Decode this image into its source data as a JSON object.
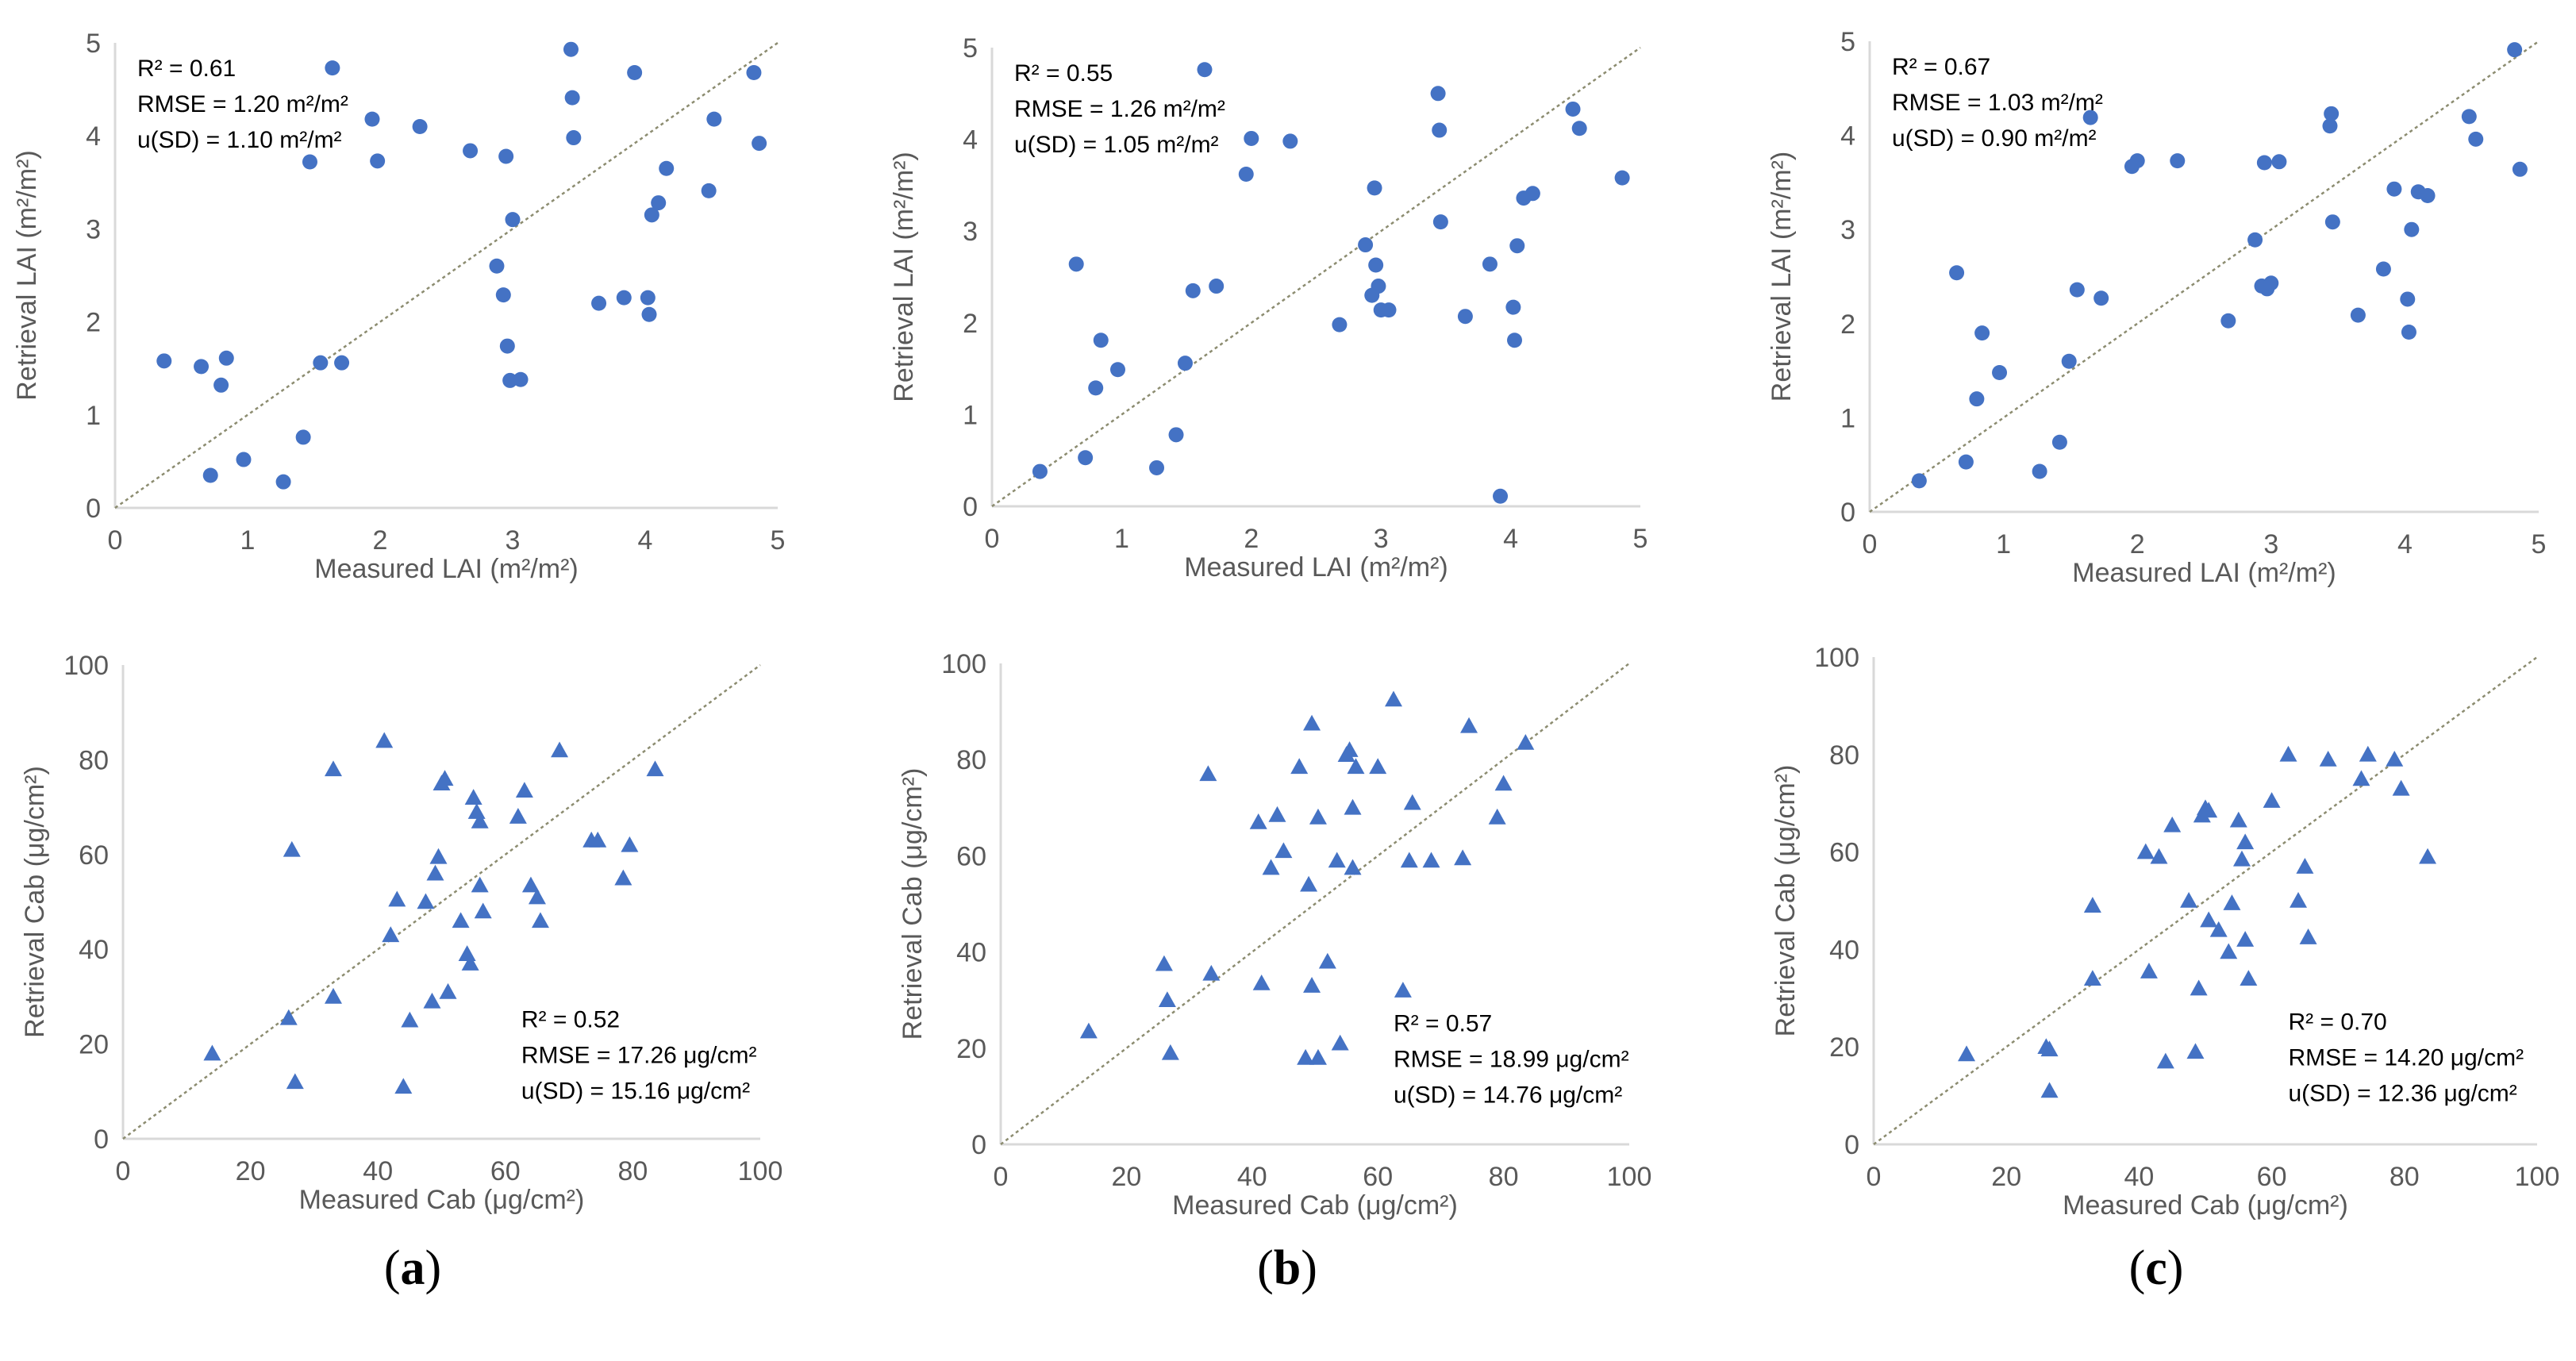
{
  "colors": {
    "marker": "#4472C4",
    "axis": "#D9D9D9",
    "diagonal": "#8C8C70",
    "text": "#595959"
  },
  "panel_labels": [
    "a",
    "b",
    "c"
  ],
  "chart_data": [
    {
      "type": "scatter",
      "marker": "circle",
      "panel": "a",
      "xlabel": "Measured LAI (m²/m²)",
      "ylabel": "Retrieval LAI (m²/m²)",
      "xlim": [
        0,
        5
      ],
      "ylim": [
        0,
        5
      ],
      "xticks": [
        0,
        1,
        2,
        3,
        4,
        5
      ],
      "yticks": [
        0,
        1,
        2,
        3,
        4,
        5
      ],
      "stats": [
        "R² = 0.61",
        "RMSE = 1.20 m²/m²",
        "u(SD) = 1.10 m²/m²"
      ],
      "stats_position": "top-left",
      "x": [
        0.37,
        0.65,
        0.72,
        0.8,
        0.84,
        0.97,
        1.27,
        1.42,
        1.47,
        1.55,
        1.64,
        1.71,
        1.94,
        1.98,
        2.3,
        2.68,
        2.88,
        2.93,
        2.95,
        2.96,
        2.98,
        3.0,
        3.06,
        3.44,
        3.45,
        3.46,
        3.65,
        3.84,
        3.92,
        4.02,
        4.03,
        4.05,
        4.1,
        4.16,
        4.48,
        4.52,
        4.82,
        4.86
      ],
      "y": [
        1.58,
        1.52,
        0.35,
        1.32,
        1.61,
        0.52,
        0.28,
        0.76,
        3.72,
        1.56,
        4.73,
        1.56,
        4.18,
        3.73,
        4.1,
        3.84,
        2.6,
        2.29,
        3.78,
        1.74,
        1.37,
        3.1,
        1.38,
        4.93,
        4.41,
        3.98,
        2.2,
        2.26,
        4.68,
        2.26,
        2.08,
        3.15,
        3.28,
        3.65,
        3.41,
        4.18,
        4.68,
        3.92
      ]
    },
    {
      "type": "scatter",
      "marker": "circle",
      "panel": "b",
      "xlabel": "Measured LAI (m²/m²)",
      "ylabel": "Retrieval LAI (m²/m²)",
      "xlim": [
        0,
        5
      ],
      "ylim": [
        0,
        5
      ],
      "xticks": [
        0,
        1,
        2,
        3,
        4,
        5
      ],
      "yticks": [
        0,
        1,
        2,
        3,
        4,
        5
      ],
      "stats": [
        "R² = 0.55",
        "RMSE = 1.26 m²/m²",
        "u(SD) = 1.05 m²/m²"
      ],
      "stats_position": "top-left",
      "x": [
        0.37,
        0.65,
        0.72,
        0.8,
        0.84,
        0.97,
        1.27,
        1.42,
        1.49,
        1.55,
        1.64,
        1.73,
        1.96,
        2.0,
        2.3,
        2.68,
        2.88,
        2.93,
        2.95,
        2.96,
        2.98,
        3.0,
        3.06,
        3.44,
        3.45,
        3.46,
        3.65,
        3.84,
        3.92,
        4.02,
        4.03,
        4.05,
        4.1,
        4.17,
        4.48,
        4.53,
        4.86
      ],
      "y": [
        0.38,
        2.64,
        0.53,
        1.29,
        1.81,
        1.49,
        0.42,
        0.78,
        1.56,
        2.35,
        4.76,
        2.4,
        3.62,
        4.01,
        3.98,
        1.98,
        2.85,
        2.3,
        3.47,
        2.63,
        2.4,
        2.14,
        2.14,
        4.5,
        4.1,
        3.1,
        2.07,
        2.64,
        0.11,
        2.17,
        1.81,
        2.84,
        3.36,
        3.41,
        4.33,
        4.12,
        3.58
      ]
    },
    {
      "type": "scatter",
      "marker": "circle",
      "panel": "c",
      "xlabel": "Measured LAI (m²/m²)",
      "ylabel": "Retrieval LAI (m²/m²)",
      "xlim": [
        0,
        5
      ],
      "ylim": [
        0,
        5
      ],
      "xticks": [
        0,
        1,
        2,
        3,
        4,
        5
      ],
      "yticks": [
        0,
        1,
        2,
        3,
        4,
        5
      ],
      "stats": [
        "R² = 0.67",
        "RMSE = 1.03 m²/m²",
        "u(SD) = 0.90 m²/m²"
      ],
      "stats_position": "top-left",
      "x": [
        0.37,
        0.65,
        0.72,
        0.8,
        0.84,
        0.97,
        1.27,
        1.42,
        1.49,
        1.55,
        1.65,
        1.73,
        1.96,
        2.0,
        2.3,
        2.68,
        2.88,
        2.93,
        2.95,
        2.97,
        3.0,
        3.06,
        3.44,
        3.45,
        3.46,
        3.65,
        3.84,
        3.92,
        4.02,
        4.03,
        4.05,
        4.1,
        4.17,
        4.48,
        4.53,
        4.82,
        4.86
      ],
      "y": [
        0.33,
        2.54,
        0.53,
        1.2,
        1.9,
        1.48,
        0.43,
        0.74,
        1.6,
        2.36,
        4.19,
        2.27,
        3.67,
        3.73,
        3.73,
        2.03,
        2.89,
        2.4,
        3.71,
        2.37,
        2.43,
        3.72,
        4.1,
        4.23,
        3.08,
        2.09,
        2.58,
        3.43,
        2.26,
        1.91,
        3.0,
        3.4,
        3.36,
        4.2,
        3.96,
        4.91,
        3.64
      ]
    },
    {
      "type": "scatter",
      "marker": "triangle",
      "panel": "a",
      "xlabel": "Measured Cab (μg/cm²)",
      "ylabel": "Retrieval Cab (μg/cm²)",
      "xlim": [
        0,
        100
      ],
      "ylim": [
        0,
        100
      ],
      "xticks": [
        0,
        20,
        40,
        60,
        80,
        100
      ],
      "yticks": [
        0,
        20,
        40,
        60,
        80,
        100
      ],
      "stats": [
        "R² = 0.52",
        "RMSE = 17.26 μg/cm²",
        "u(SD) = 15.16 μg/cm²"
      ],
      "stats_position": "bottom-right",
      "x": [
        14,
        26,
        26.5,
        27,
        33,
        33,
        41,
        42,
        43,
        44,
        45,
        47.5,
        48.5,
        49,
        49.5,
        50,
        50.5,
        51,
        53,
        54,
        54.5,
        55,
        55.5,
        56,
        56,
        56.5,
        62,
        63,
        64,
        65,
        65.5,
        68.5,
        73.5,
        74.5,
        78.5,
        79.5,
        83.5
      ],
      "y": [
        18,
        25.5,
        61,
        12,
        30,
        78,
        84,
        43,
        50.5,
        11,
        25,
        50,
        29,
        56,
        59.5,
        75,
        76,
        31,
        46,
        39,
        37,
        72,
        69,
        67,
        53.5,
        48,
        68,
        73.5,
        53.5,
        51,
        46,
        82,
        63,
        63,
        55,
        62,
        78
      ]
    },
    {
      "type": "scatter",
      "marker": "triangle",
      "panel": "b",
      "xlabel": "Measured Cab (μg/cm²)",
      "ylabel": "Retrieval Cab (μg/cm²)",
      "xlim": [
        0,
        100
      ],
      "ylim": [
        0,
        100
      ],
      "xticks": [
        0,
        20,
        40,
        60,
        80,
        100
      ],
      "yticks": [
        0,
        20,
        40,
        60,
        80,
        100
      ],
      "stats": [
        "R² = 0.57",
        "RMSE = 18.99 μg/cm²",
        "u(SD) = 14.76 μg/cm²"
      ],
      "stats_position": "bottom-right",
      "x": [
        14,
        26,
        26.5,
        27,
        33,
        33.5,
        41,
        41.5,
        43,
        44,
        45,
        47.5,
        48.5,
        49,
        49.5,
        49.5,
        50.5,
        50.5,
        52,
        53.5,
        54,
        55,
        55.5,
        56,
        56,
        56.5,
        60,
        62.5,
        64,
        65,
        65.5,
        68.5,
        73.5,
        74.5,
        79,
        80,
        83.5
      ],
      "y": [
        23.5,
        37.5,
        30,
        19,
        77,
        35.5,
        67,
        33.5,
        57.5,
        68.5,
        61,
        78.5,
        18,
        54,
        33,
        87.5,
        68,
        18,
        38,
        59,
        21,
        81,
        82,
        70,
        57.5,
        78.5,
        78.5,
        92.5,
        32,
        59,
        71,
        59,
        59.5,
        87,
        68,
        75,
        83.5
      ]
    },
    {
      "type": "scatter",
      "marker": "triangle",
      "panel": "c",
      "xlabel": "Measured Cab (μg/cm²)",
      "ylabel": "Retrieval Cab (μg/cm²)",
      "xlim": [
        0,
        100
      ],
      "ylim": [
        0,
        100
      ],
      "xticks": [
        0,
        20,
        40,
        60,
        80,
        100
      ],
      "yticks": [
        0,
        20,
        40,
        60,
        80,
        100
      ],
      "stats": [
        "R² = 0.70",
        "RMSE = 14.20 μg/cm²",
        "u(SD) = 12.36 μg/cm²"
      ],
      "stats_position": "bottom-right",
      "x": [
        14,
        26,
        26.5,
        26.5,
        33,
        33,
        41,
        41.5,
        43,
        44,
        45,
        47.5,
        48.5,
        49,
        49.5,
        50,
        50.5,
        50.5,
        52,
        53.5,
        54,
        55,
        55.5,
        56,
        56,
        56.5,
        60,
        62.5,
        64,
        65,
        65.5,
        68.5,
        73.5,
        74.5,
        78.5,
        79.5,
        83.5
      ],
      "y": [
        18.5,
        20,
        11,
        19.5,
        34,
        49,
        60,
        35.5,
        59,
        17,
        65.5,
        50,
        19,
        32,
        67.5,
        69,
        46,
        68.5,
        44,
        39.5,
        49.5,
        66.5,
        58.5,
        62,
        42,
        34,
        70.5,
        80,
        50,
        57,
        42.5,
        79,
        75,
        80,
        79,
        73,
        59
      ]
    }
  ]
}
